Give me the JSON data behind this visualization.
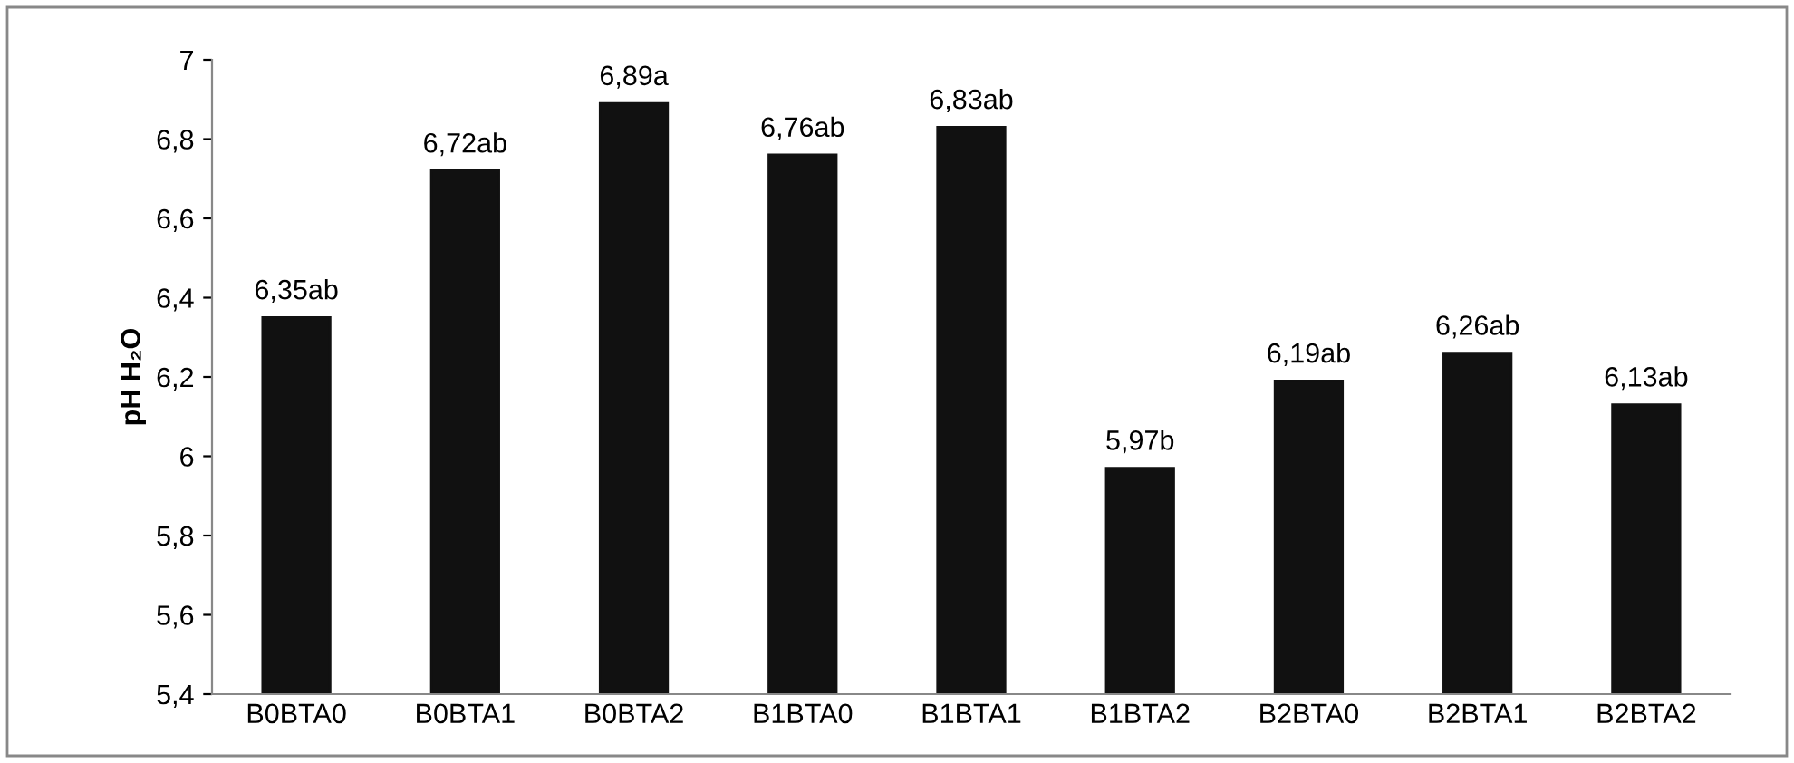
{
  "chart_data": {
    "type": "bar",
    "ylabel": "pH H₂O",
    "categories": [
      "B0BTA0",
      "B0BTA1",
      "B0BTA2",
      "B1BTA0",
      "B1BTA1",
      "B1BTA2",
      "B2BTA0",
      "B2BTA1",
      "B2BTA2"
    ],
    "values": [
      6.35,
      6.72,
      6.89,
      6.76,
      6.83,
      5.97,
      6.19,
      6.26,
      6.13
    ],
    "value_labels": [
      "6,35ab",
      "6,72ab",
      "6,89a",
      "6,76ab",
      "6,83ab",
      "5,97b",
      "6,19ab",
      "6,26ab",
      "6,13ab"
    ],
    "color": "#111111",
    "ylim": [
      5.4,
      7
    ],
    "yticks": [
      {
        "value": 5.4,
        "label": "5,4"
      },
      {
        "value": 5.6,
        "label": "5,6"
      },
      {
        "value": 5.8,
        "label": "5,8"
      },
      6,
      {
        "value": 6.2,
        "label": "6,2"
      },
      {
        "value": 6.4,
        "label": "6,4"
      },
      {
        "value": 6.6,
        "label": "6,6"
      },
      {
        "value": 6.8,
        "label": "6,8"
      },
      7
    ],
    "grid": false,
    "legend": false
  }
}
